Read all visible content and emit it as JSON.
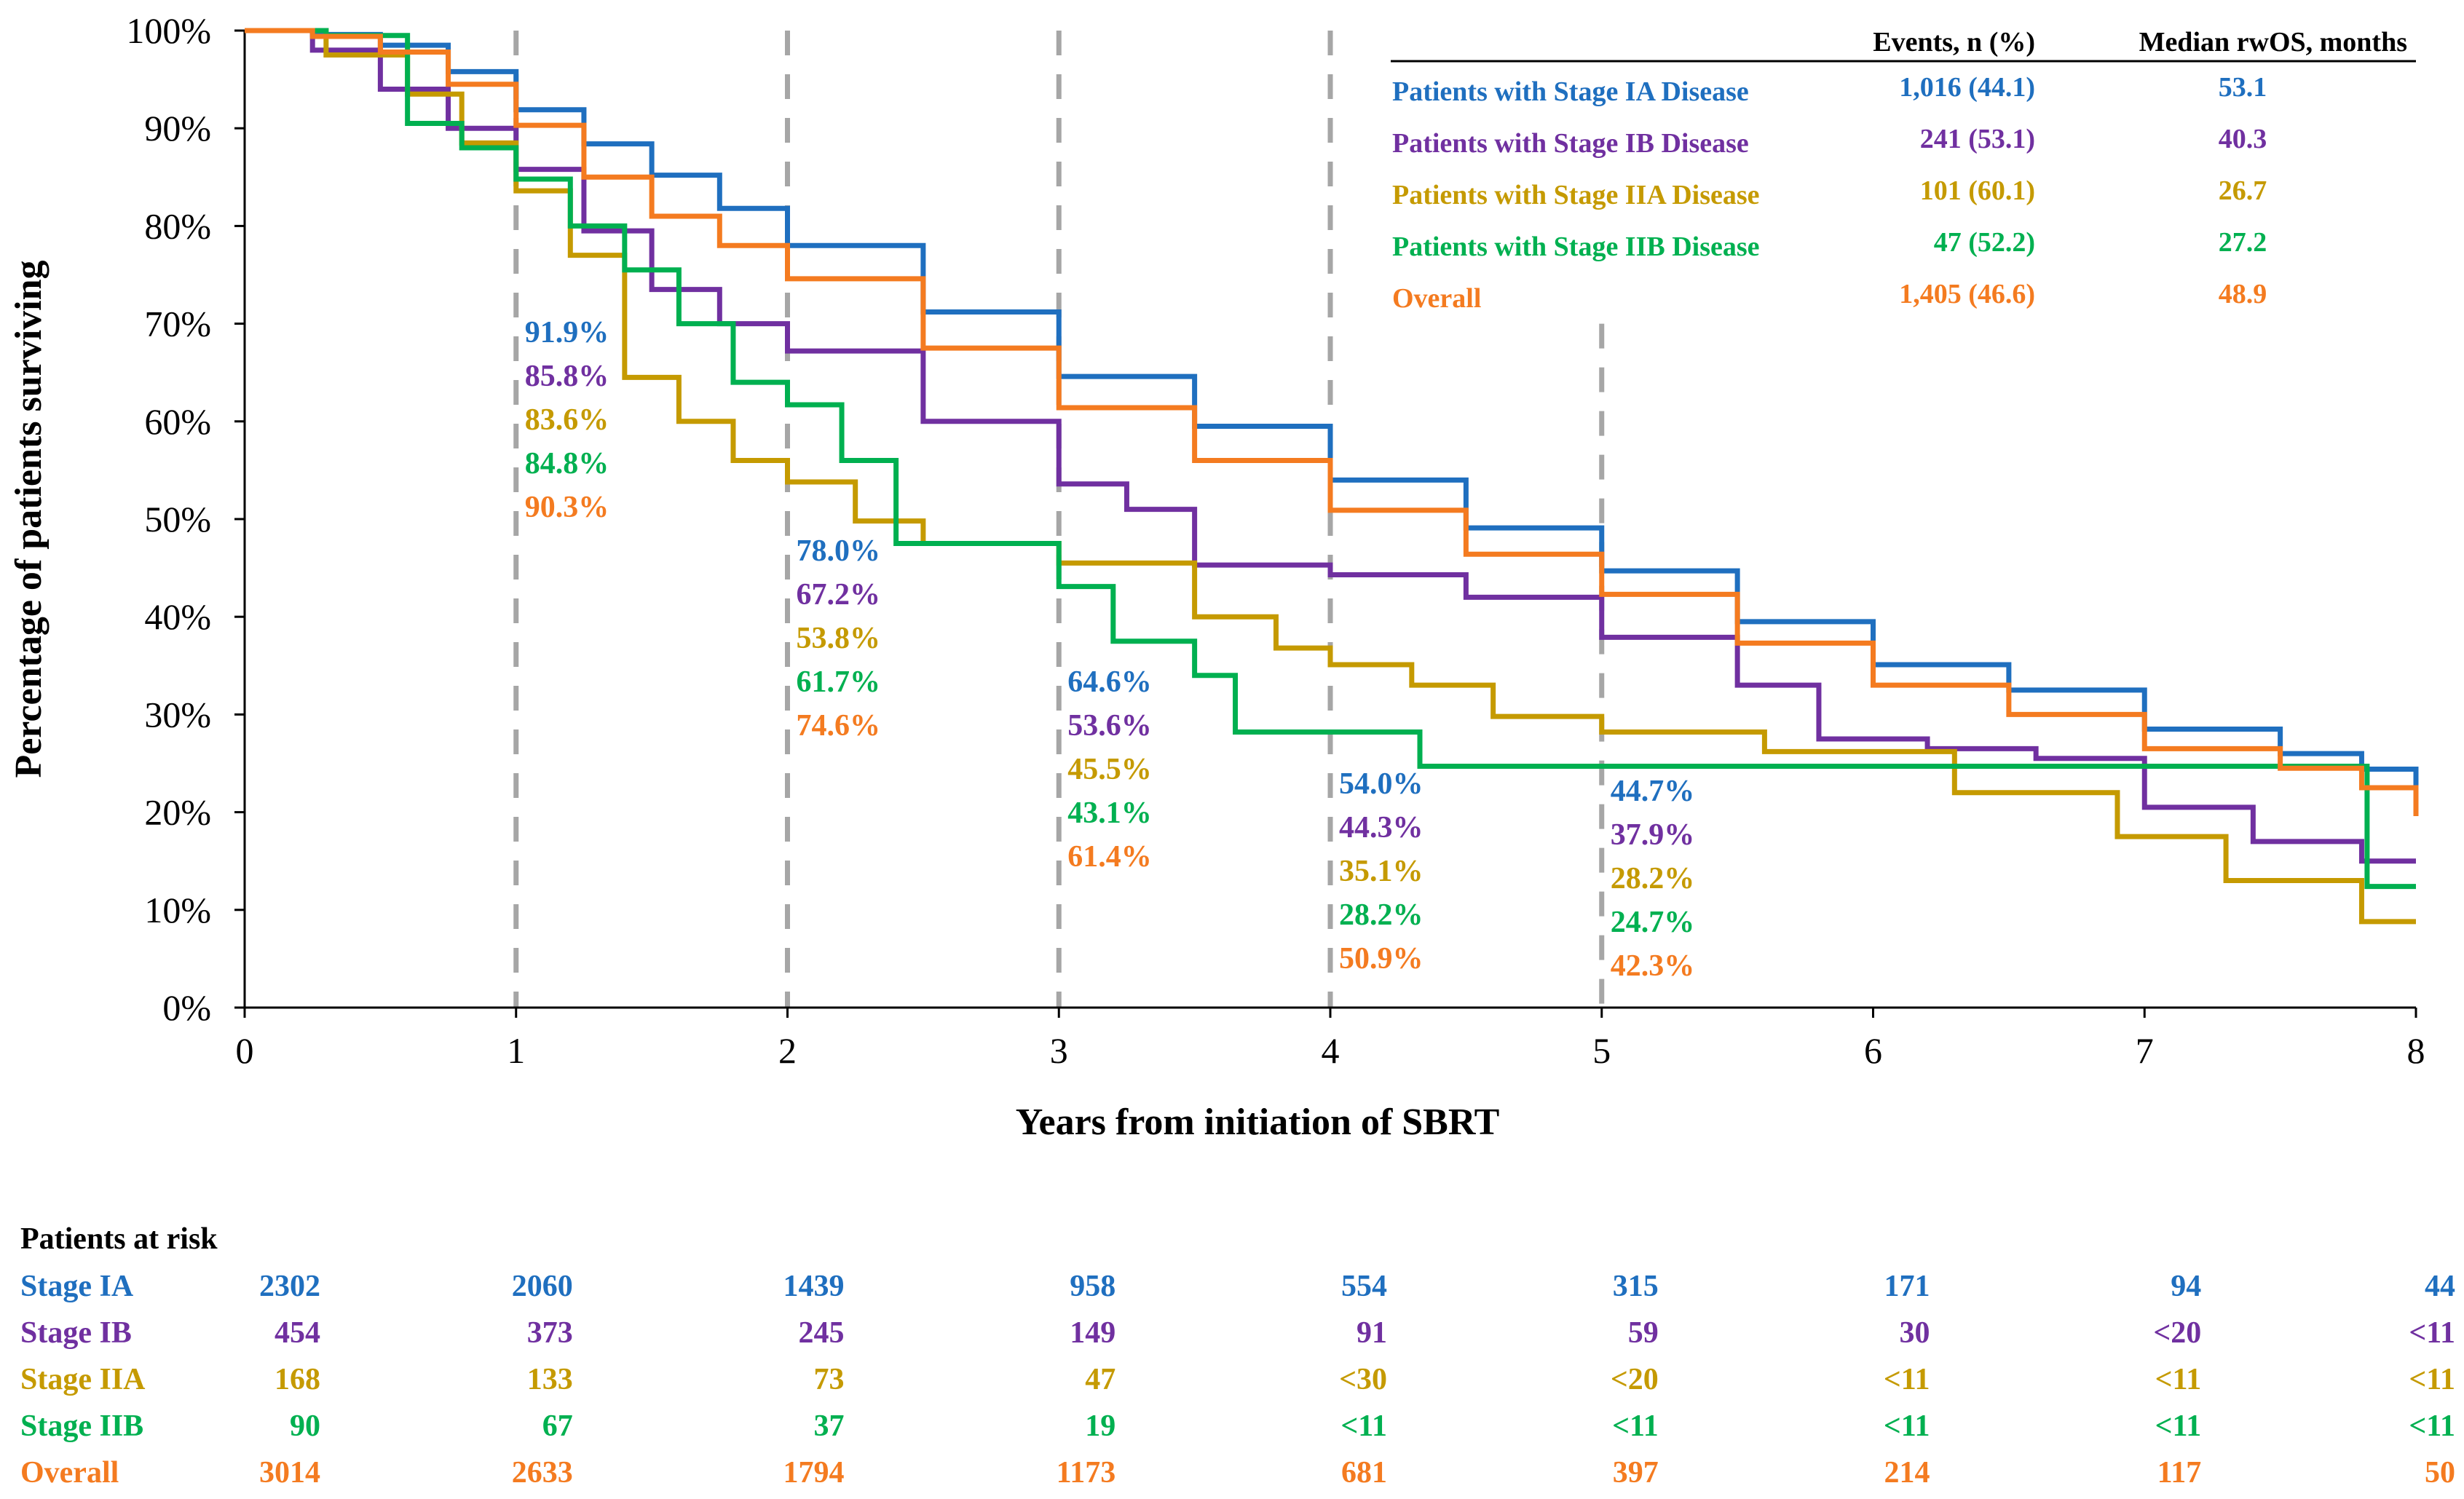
{
  "chart_data": {
    "type": "line",
    "title": "",
    "xlabel": "Years from initiation of SBRT",
    "ylabel": "Percentage of patients surviving",
    "xlim": [
      0,
      8
    ],
    "ylim": [
      0,
      100
    ],
    "x_ticks": [
      "0",
      "1",
      "2",
      "3",
      "4",
      "5",
      "6",
      "7",
      "8"
    ],
    "y_ticks": [
      "0%",
      "10%",
      "20%",
      "30%",
      "40%",
      "50%",
      "60%",
      "70%",
      "80%",
      "90%",
      "100%"
    ],
    "reference_lines_x": [
      1,
      2,
      3,
      4,
      5
    ],
    "series": [
      {
        "name": "Patients with Stage IA Disease",
        "color": "#1f6fbf",
        "events": "1,016 (44.1)",
        "median": "53.1",
        "x": [
          0,
          0.25,
          0.5,
          0.75,
          1,
          1.25,
          1.5,
          1.75,
          2,
          2.5,
          3,
          3.5,
          4,
          4.5,
          5,
          5.5,
          6,
          6.5,
          7,
          7.5,
          7.8,
          8
        ],
        "y": [
          100,
          99.6,
          98.5,
          95.8,
          91.9,
          88.4,
          85.2,
          81.8,
          78.0,
          71.2,
          64.6,
          59.5,
          54.0,
          49.1,
          44.7,
          39.5,
          35.1,
          32.5,
          28.5,
          26.0,
          24.4,
          21.8
        ]
      },
      {
        "name": "Patients with Stage IB Disease",
        "color": "#7030a0",
        "events": "241 (53.1)",
        "median": "40.3",
        "x": [
          0,
          0.25,
          0.5,
          0.75,
          1,
          1.25,
          1.5,
          1.75,
          2,
          2.5,
          3,
          3.25,
          3.5,
          4,
          4.5,
          5,
          5.5,
          5.8,
          6.2,
          6.6,
          7,
          7.4,
          7.8,
          8
        ],
        "y": [
          100,
          98.0,
          94.0,
          90.0,
          85.8,
          79.5,
          73.5,
          70.0,
          67.2,
          60.0,
          53.6,
          51.0,
          45.3,
          44.3,
          42.0,
          37.9,
          33.0,
          27.5,
          26.5,
          25.5,
          20.5,
          17.0,
          15.0,
          15.0
        ]
      },
      {
        "name": "Patients with Stage IIA Disease",
        "color": "#c59a00",
        "events": "101 (60.1)",
        "median": "26.7",
        "x": [
          0,
          0.3,
          0.6,
          0.8,
          1,
          1.2,
          1.4,
          1.6,
          1.8,
          2,
          2.25,
          2.5,
          3,
          3.5,
          3.8,
          4,
          4.3,
          4.6,
          5,
          5.6,
          6.3,
          6.9,
          7.3,
          7.8,
          8
        ],
        "y": [
          100,
          97.5,
          93.5,
          88.5,
          83.6,
          77.0,
          64.5,
          60.0,
          56.0,
          53.8,
          49.8,
          47.5,
          45.5,
          40.0,
          36.8,
          35.1,
          33.0,
          29.8,
          28.2,
          26.2,
          22.0,
          17.5,
          13.0,
          8.8,
          8.8
        ]
      },
      {
        "name": "Patients with Stage IIB Disease",
        "color": "#00b050",
        "events": "47 (52.2)",
        "median": "27.2",
        "x": [
          0,
          0.3,
          0.6,
          0.8,
          1,
          1.2,
          1.4,
          1.6,
          1.8,
          2,
          2.2,
          2.4,
          3,
          3.2,
          3.5,
          3.65,
          4,
          4.33,
          5,
          6,
          7,
          7.8,
          7.82,
          8
        ],
        "y": [
          100,
          99.5,
          90.5,
          88.0,
          84.8,
          80.0,
          75.5,
          70.0,
          64.0,
          61.7,
          56.0,
          47.5,
          43.1,
          37.5,
          34.0,
          28.2,
          28.2,
          24.7,
          24.7,
          24.7,
          24.7,
          24.7,
          12.4,
          12.4
        ]
      },
      {
        "name": "Overall",
        "color": "#f47b20",
        "events": "1,405 (46.6)",
        "median": "48.9",
        "x": [
          0,
          0.25,
          0.5,
          0.75,
          1,
          1.25,
          1.5,
          1.75,
          2,
          2.5,
          3,
          3.5,
          4,
          4.5,
          5,
          5.5,
          6,
          6.5,
          7,
          7.5,
          7.8,
          8
        ],
        "y": [
          100,
          99.4,
          97.8,
          94.5,
          90.3,
          85.0,
          81.0,
          78.0,
          74.6,
          67.5,
          61.4,
          56.0,
          50.9,
          46.4,
          42.3,
          37.3,
          33.0,
          30.0,
          26.5,
          24.5,
          22.5,
          19.6
        ]
      }
    ],
    "annotations": [
      {
        "x": 1,
        "values": [
          "91.9%",
          "85.8%",
          "83.6%",
          "84.8%",
          "90.3%"
        ]
      },
      {
        "x": 2,
        "values": [
          "78.0%",
          "67.2%",
          "53.8%",
          "61.7%",
          "74.6%"
        ]
      },
      {
        "x": 3,
        "values": [
          "64.6%",
          "53.6%",
          "45.5%",
          "43.1%",
          "61.4%"
        ]
      },
      {
        "x": 4,
        "values": [
          "54.0%",
          "44.3%",
          "35.1%",
          "28.2%",
          "50.9%"
        ]
      },
      {
        "x": 5,
        "values": [
          "44.7%",
          "37.9%",
          "28.2%",
          "24.7%",
          "42.3%"
        ]
      }
    ],
    "legend": {
      "placement": "top-right",
      "events_header": "Events, n (%)",
      "median_header": "Median rwOS, months"
    },
    "risk_table": {
      "title": "Patients at risk",
      "rows": [
        {
          "label": "Stage IA",
          "values": [
            "2302",
            "2060",
            "1439",
            "958",
            "554",
            "315",
            "171",
            "94",
            "44"
          ]
        },
        {
          "label": "Stage IB",
          "values": [
            "454",
            "373",
            "245",
            "149",
            "91",
            "59",
            "30",
            "<20",
            "<11"
          ]
        },
        {
          "label": "Stage IIA",
          "values": [
            "168",
            "133",
            "73",
            "47",
            "<30",
            "<20",
            "<11",
            "<11",
            "<11"
          ]
        },
        {
          "label": "Stage IIB",
          "values": [
            "90",
            "67",
            "37",
            "19",
            "<11",
            "<11",
            "<11",
            "<11",
            "<11"
          ]
        },
        {
          "label": "Overall",
          "values": [
            "3014",
            "2633",
            "1794",
            "1173",
            "681",
            "397",
            "214",
            "117",
            "50"
          ]
        }
      ]
    }
  }
}
